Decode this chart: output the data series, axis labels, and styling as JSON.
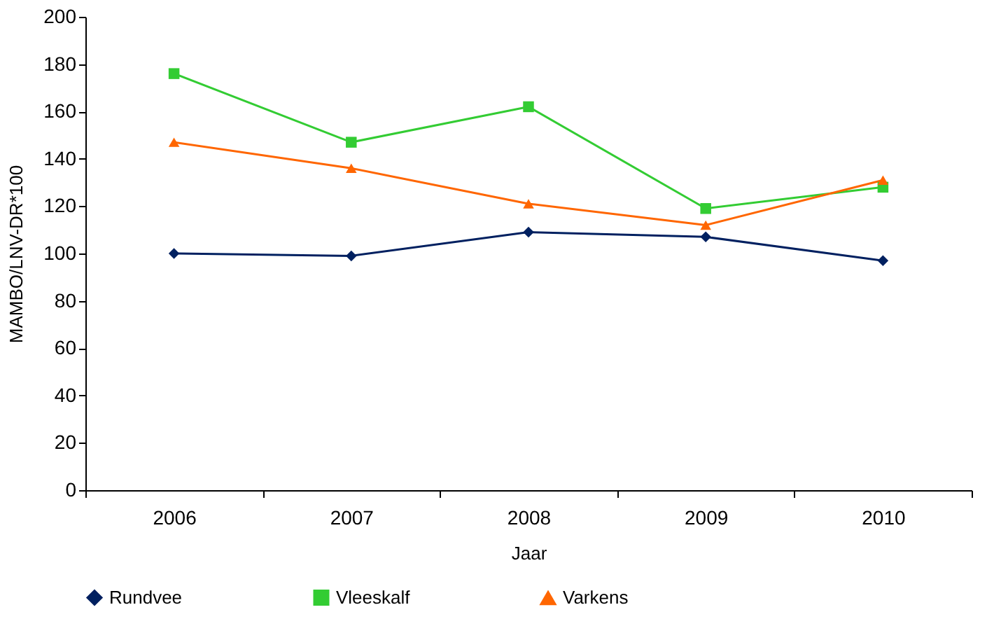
{
  "chart_data": {
    "type": "line",
    "xlabel": "Jaar",
    "ylabel": "MAMBO/LNV-DR*100",
    "categories": [
      "2006",
      "2007",
      "2008",
      "2009",
      "2010"
    ],
    "series": [
      {
        "name": "Rundvee",
        "color": "#002060",
        "marker": "diamond",
        "values": [
          100,
          99,
          109,
          107,
          97
        ]
      },
      {
        "name": "Vleeskalf",
        "color": "#33cc33",
        "marker": "square",
        "values": [
          176,
          147,
          162,
          119,
          128
        ]
      },
      {
        "name": "Varkens",
        "color": "#ff6600",
        "marker": "triangle",
        "values": [
          147,
          136,
          121,
          112,
          131
        ]
      }
    ],
    "ylim": [
      0,
      200
    ],
    "yticks": [
      0,
      20,
      40,
      60,
      80,
      100,
      120,
      140,
      160,
      180,
      200
    ],
    "grid": false,
    "legend": "bottom"
  }
}
